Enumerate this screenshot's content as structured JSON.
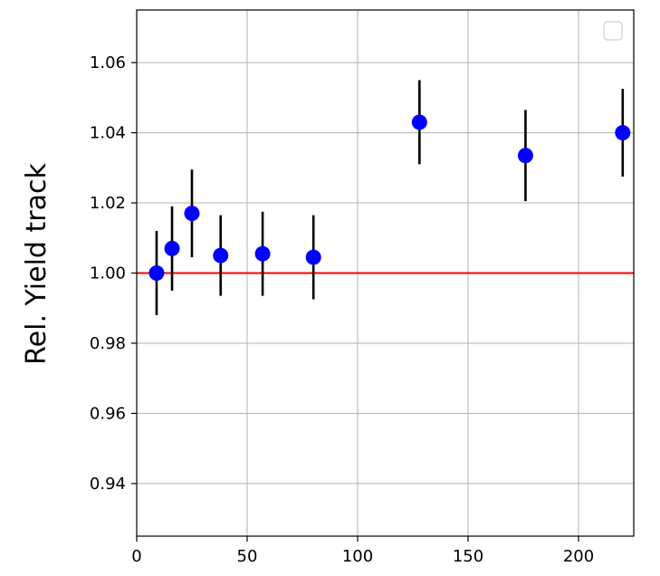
{
  "chart_data": {
    "type": "scatter",
    "title": "",
    "xlabel": "",
    "ylabel": "Rel. Yield track",
    "xlim": [
      0,
      225
    ],
    "ylim": [
      0.925,
      1.075
    ],
    "xticks": [
      0,
      50,
      100,
      150,
      200
    ],
    "xtick_labels": [
      "0",
      "50",
      "100",
      "150",
      "200"
    ],
    "yticks": [
      0.94,
      0.96,
      0.98,
      1.0,
      1.02,
      1.04,
      1.06
    ],
    "ytick_labels": [
      "0.94",
      "0.96",
      "0.98",
      "1.00",
      "1.02",
      "1.04",
      "1.06"
    ],
    "grid": true,
    "legend": {
      "placement": "top-right",
      "entries": []
    },
    "reference_line": {
      "y": 1.0,
      "color": "#ff0000"
    },
    "points": [
      {
        "x": 9,
        "y": 1.0,
        "err": 0.012
      },
      {
        "x": 16,
        "y": 1.007,
        "err": 0.012
      },
      {
        "x": 25,
        "y": 1.017,
        "err": 0.0125
      },
      {
        "x": 38,
        "y": 1.005,
        "err": 0.0115
      },
      {
        "x": 57,
        "y": 1.0055,
        "err": 0.012
      },
      {
        "x": 80,
        "y": 1.0045,
        "err": 0.012
      },
      {
        "x": 128,
        "y": 1.043,
        "err": 0.012
      },
      {
        "x": 176,
        "y": 1.0335,
        "err": 0.013
      },
      {
        "x": 220,
        "y": 1.04,
        "err": 0.0125
      }
    ],
    "marker_color": "#0000ff",
    "errorbar_color": "#000000"
  }
}
